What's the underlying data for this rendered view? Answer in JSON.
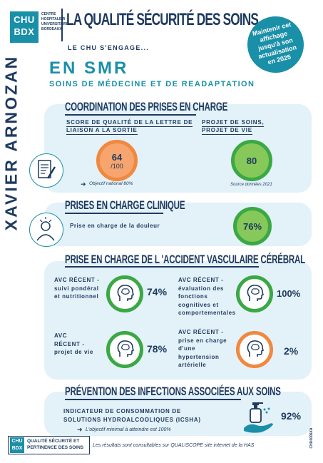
{
  "header": {
    "logo_line1": "CHU",
    "logo_line2": "BDX",
    "logo_sub": "CENTRE HOSPITALIER UNIVERSITAIRE BORDEAUX",
    "title": "LA QUALITÉ SÉCURITÉ DES SOINS",
    "subtitle": "LE CHU S'ENGAGE...",
    "notice": "Maintenir cet affichage jusqu'à son actualisation en 2025"
  },
  "site_name": "XAVIER ARNOZAN",
  "service": {
    "name": "EN SMR",
    "full": "SOINS DE MÉDECINE ET DE READAPTATION"
  },
  "coordination": {
    "title": "COORDINATION DES PRISES EN CHARGE",
    "score_label": "SCORE DE QUALITÉ DE LA LETTRE DE LIAISON A LA SORTIE",
    "score_value": "64",
    "score_denominator": "/100",
    "objective_note": "Objectif national 80%",
    "project_label": "PROJET DE SOINS, PROJET DE VIE",
    "project_value": "80",
    "source_note": "Source données 2021",
    "icon": "document-pen-icon"
  },
  "clinical": {
    "title": "PRISES EN CHARGE CLINIQUE",
    "pain_label": "Prise en charge de la douleur",
    "pain_value": "76%",
    "icon": "patient-in-pain-icon"
  },
  "avc": {
    "title": "PRISE EN CHARGE DE L 'ACCIDENT VASCULAIRE CÉRÉBRAL",
    "items": [
      {
        "label": "AVC RÉCENT - suivi pondéral et nutritionnel",
        "value": "74%",
        "ring": "green"
      },
      {
        "label": "AVC RÉCENT - évaluation des fonctions cognitives et comportementales",
        "value": "100%",
        "ring": "green"
      },
      {
        "label": "AVC RÉCENT - projet de vie",
        "value": "78%",
        "ring": "green"
      },
      {
        "label": "AVC RÉCENT - prise en charge d'une hypertension artérielle",
        "value": "2%",
        "ring": "orange"
      }
    ],
    "icon": "brain-head-icon"
  },
  "infections": {
    "title": "PRÉVENTION DES INFECTIONS ASSOCIÉES AUX SOINS",
    "indicator_label": "INDICATEUR DE CONSOMMATION DE SOLUTIONS HYDROALCOOLIQUES (ICSHA)",
    "value": "92%",
    "note": "L'objectif minimal à atteindre est 100%",
    "icon": "hand-sanitizer-icon"
  },
  "footer": {
    "logo_line1": "CHU",
    "logo_line2": "BDX",
    "dept_line1": "QUALITÉ SÉCURITÉ ET",
    "dept_line2": "PERTINENCE DES SOINS",
    "note": "Les résultats sont consultables sur QUALISCOPE site internet de la HAS",
    "code": "CHU0006XA"
  },
  "colors": {
    "navy": "#1e3a5f",
    "teal": "#1a8fa8",
    "panel": "#e3f1f8",
    "green": "#3aa845",
    "orange": "#f0883e"
  }
}
